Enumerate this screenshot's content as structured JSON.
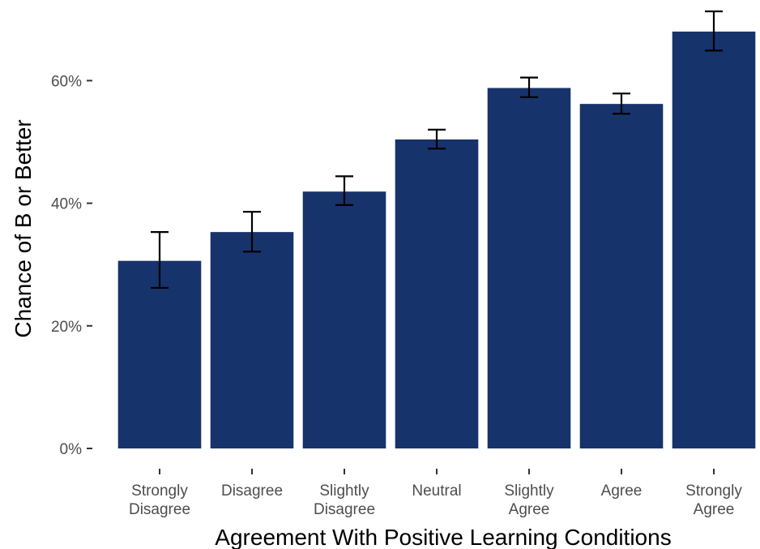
{
  "chart_data": {
    "type": "bar",
    "title": "",
    "xlabel": "Agreement With Positive Learning Conditions",
    "ylabel": "Chance of B or Better",
    "categories": [
      [
        "Strongly",
        "Disagree"
      ],
      [
        "Disagree"
      ],
      [
        "Slightly",
        "Disagree"
      ],
      [
        "Neutral"
      ],
      [
        "Slightly",
        "Agree"
      ],
      [
        "Agree"
      ],
      [
        "Strongly",
        "Agree"
      ]
    ],
    "values": [
      30.6,
      35.3,
      41.9,
      50.4,
      58.8,
      56.2,
      68.0
    ],
    "error_low": [
      26.2,
      32.1,
      39.7,
      48.9,
      57.3,
      54.6,
      64.9
    ],
    "error_high": [
      35.3,
      38.6,
      44.4,
      52.0,
      60.5,
      57.9,
      71.3
    ],
    "ylim": [
      0,
      71.3
    ],
    "yticks": [
      0,
      20,
      40,
      60
    ],
    "ytick_labels": [
      "0%",
      "20%",
      "40%",
      "60%"
    ],
    "grid": false,
    "bar_color": "#17336b",
    "error_bar_color": "#000000"
  }
}
